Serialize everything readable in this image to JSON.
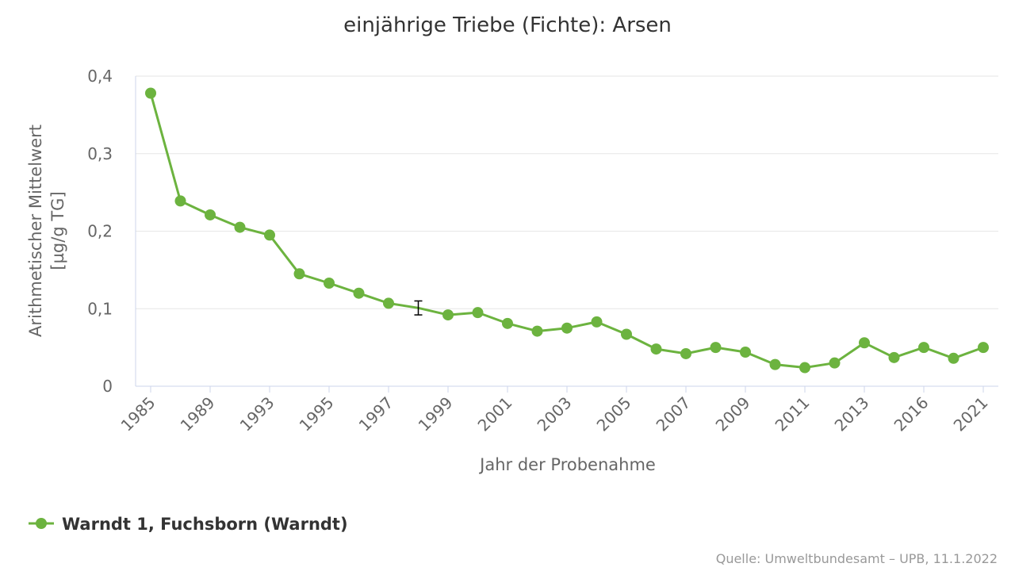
{
  "chart_data": {
    "type": "line",
    "title": "einjährige Triebe (Fichte): Arsen",
    "xlabel": "Jahr der Probenahme",
    "ylabel_line1": "Arithmetischer Mittelwert",
    "ylabel_line2": "[µg/g TG]",
    "ylim": [
      0,
      0.4
    ],
    "y_ticks": [
      {
        "value": 0,
        "label": "0"
      },
      {
        "value": 0.1,
        "label": "0,1"
      },
      {
        "value": 0.2,
        "label": "0,2"
      },
      {
        "value": 0.3,
        "label": "0,3"
      },
      {
        "value": 0.4,
        "label": "0,4"
      }
    ],
    "x_tick_labels": [
      "1985",
      "1989",
      "1993",
      "1995",
      "1997",
      "1999",
      "2001",
      "2003",
      "2005",
      "2007",
      "2009",
      "2011",
      "2013",
      "2016",
      "2021"
    ],
    "x_tick_label_every": 2,
    "grid": true,
    "legend_position": "bottom-left",
    "series": [
      {
        "name": "Warndt 1, Fuchsborn (Warndt)",
        "color": "#6cb33f",
        "values": [
          0.378,
          0.239,
          0.221,
          0.205,
          0.195,
          0.145,
          0.133,
          0.12,
          0.107,
          0.101,
          0.092,
          0.095,
          0.081,
          0.071,
          0.075,
          0.083,
          0.067,
          0.048,
          0.042,
          0.05,
          0.044,
          0.028,
          0.024,
          0.03,
          0.056,
          0.037,
          0.05,
          0.036,
          0.05
        ],
        "error_bars": [
          {
            "index": 9,
            "low": 0.092,
            "high": 0.11
          }
        ]
      }
    ]
  },
  "credit": "Quelle: Umweltbundesamt – UPB, 11.1.2022"
}
